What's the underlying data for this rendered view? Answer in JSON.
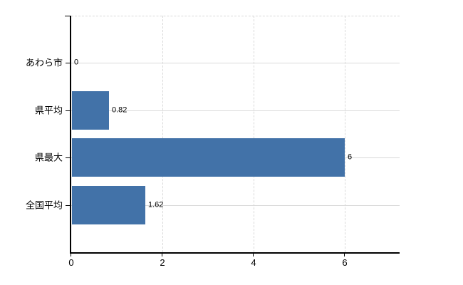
{
  "chart_data": {
    "type": "bar",
    "orientation": "horizontal",
    "title": "",
    "xlabel": "",
    "ylabel": "",
    "categories": [
      "あわら市",
      "県平均",
      "県最大",
      "全国平均"
    ],
    "values": [
      0,
      0.82,
      6,
      1.62
    ],
    "value_labels": [
      "0",
      "0.82",
      "6",
      "1.62"
    ],
    "x_ticks": [
      0,
      2,
      4,
      6
    ],
    "x_tick_labels": [
      "0",
      "2",
      "4",
      "6"
    ],
    "xlim": [
      0,
      7.2
    ],
    "grid": true,
    "legend": "none",
    "bar_color": "#4272a8",
    "grid_color": "#d9d9d9",
    "axis_color": "#000000",
    "text_color": "#000000",
    "background_color": "#ffffff"
  }
}
